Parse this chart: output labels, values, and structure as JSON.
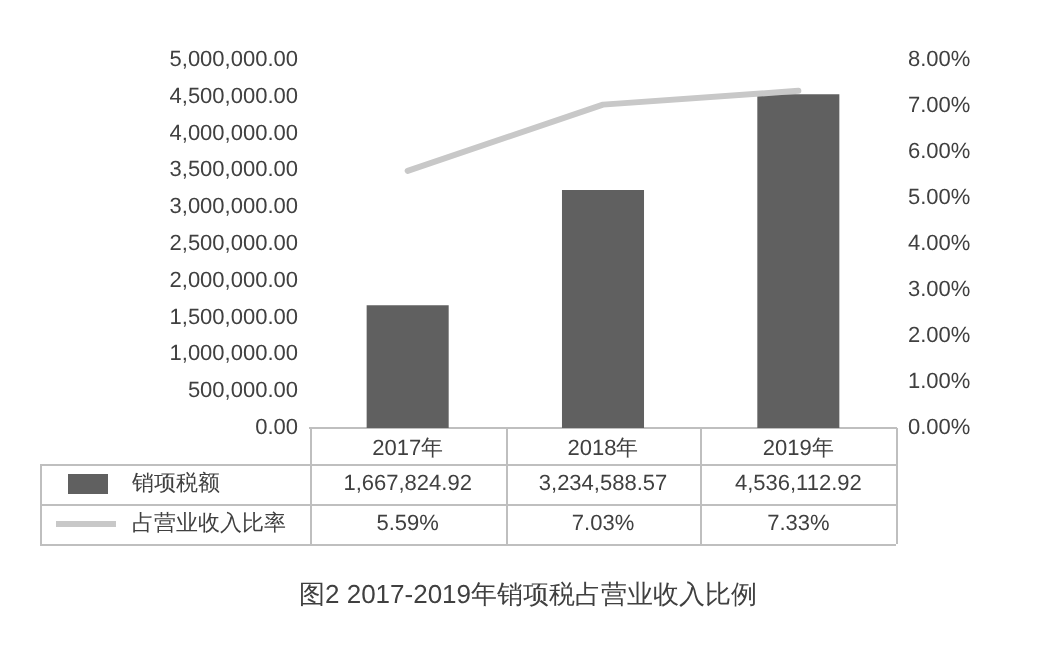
{
  "chart_data": {
    "type": "bar",
    "title": "图2 2017-2019年销项税占营业收入比例",
    "categories": [
      "2017年",
      "2018年",
      "2019年"
    ],
    "series": [
      {
        "name": "销项税额",
        "color": "#606060",
        "values": [
          1667824.92,
          3234588.57,
          4536112.92
        ],
        "value_labels": [
          "1,667,824.92",
          "3,234,588.57",
          "4,536,112.92"
        ]
      },
      {
        "name": "占营业收入比率",
        "type": "line",
        "axis": "y2",
        "color": "#c8c8c8",
        "values": [
          5.59,
          7.03,
          7.33
        ],
        "value_labels": [
          "5.59%",
          "7.03%",
          "7.33%"
        ]
      }
    ],
    "ylim": [
      0,
      5000000
    ],
    "yticks": [
      {
        "value": 0,
        "label": "0.00"
      },
      {
        "value": 500000,
        "label": "500,000.00"
      },
      {
        "value": 1000000,
        "label": "1,000,000.00"
      },
      {
        "value": 1500000,
        "label": "1,500,000.00"
      },
      {
        "value": 2000000,
        "label": "2,000,000.00"
      },
      {
        "value": 2500000,
        "label": "2,500,000.00"
      },
      {
        "value": 3000000,
        "label": "3,000,000.00"
      },
      {
        "value": 3500000,
        "label": "3,500,000.00"
      },
      {
        "value": 4000000,
        "label": "4,000,000.00"
      },
      {
        "value": 4500000,
        "label": "4,500,000.00"
      },
      {
        "value": 5000000,
        "label": "5,000,000.00"
      }
    ],
    "y2lim": [
      0,
      8
    ],
    "y2ticks": [
      {
        "value": 0,
        "label": "0.00%"
      },
      {
        "value": 1,
        "label": "1.00%"
      },
      {
        "value": 2,
        "label": "2.00%"
      },
      {
        "value": 3,
        "label": "3.00%"
      },
      {
        "value": 4,
        "label": "4.00%"
      },
      {
        "value": 5,
        "label": "5.00%"
      },
      {
        "value": 6,
        "label": "6.00%"
      },
      {
        "value": 7,
        "label": "7.00%"
      },
      {
        "value": 8,
        "label": "8.00%"
      }
    ],
    "grid": false,
    "marker": "none",
    "legend": "bottom"
  }
}
